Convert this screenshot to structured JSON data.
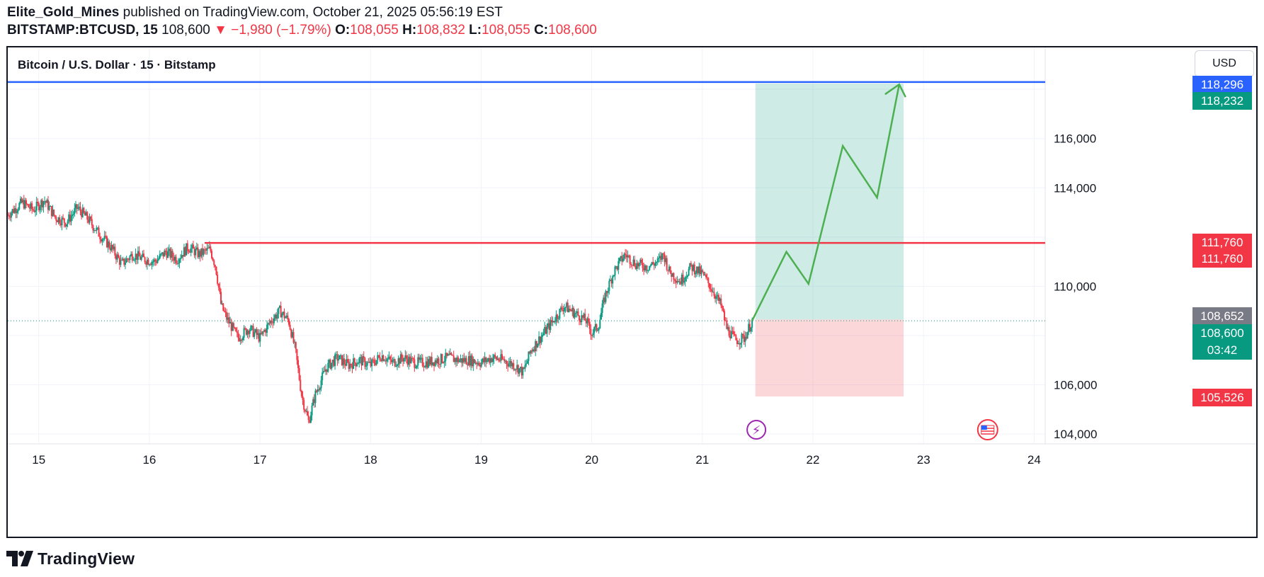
{
  "header": {
    "author": "Elite_Gold_Mines",
    "published_text": " published on TradingView.com, October 21, 2025 05:56:19 EST",
    "symbol": "BITSTAMP:BTCUSD, 15",
    "last": "108,600",
    "arrow": "▼",
    "change": "−1,980 (−1.79%)",
    "open_label": "O:",
    "open": "108,055",
    "high_label": "H:",
    "high": "108,832",
    "low_label": "L:",
    "low": "108,055",
    "close_label": "C:",
    "close": "108,600"
  },
  "chart": {
    "legend_title": "Bitcoin / U.S. Dollar · 15 · Bitstamp",
    "currency_button": "USD",
    "price_tags": [
      {
        "label": "118,296",
        "sub": "",
        "price": 118296,
        "color": "#2962ff"
      },
      {
        "label": "118,232",
        "sub": "",
        "price": 118232,
        "color": "#089981"
      },
      {
        "label": "111,760",
        "sub": "",
        "price": 111760,
        "color": "#f23645"
      },
      {
        "label": "111,760",
        "sub": "",
        "price": 111760,
        "color": "#f23645"
      },
      {
        "label": "108,652",
        "sub": "",
        "price": 108652,
        "color": "#787b86"
      },
      {
        "label": "108,600",
        "sub": "03:42",
        "price": 108600,
        "color": "#089981"
      },
      {
        "label": "105,526",
        "sub": "",
        "price": 105526,
        "color": "#f23645"
      }
    ],
    "event_icons": [
      "lightning-event-icon",
      "us-flag-event-icon"
    ]
  },
  "chart_data": {
    "type": "candlestick",
    "x_axis_ticks": [
      "15",
      "16",
      "17",
      "18",
      "19",
      "20",
      "21",
      "22",
      "23",
      "24"
    ],
    "y_axis_ticks": [
      "104,000",
      "106,000",
      "110,000",
      "114,000",
      "116,000"
    ],
    "ylim": [
      103600,
      119700
    ],
    "xlim": [
      14.72,
      24.1
    ],
    "grid": true,
    "price_path": [
      [
        14.72,
        112.9
      ],
      [
        14.85,
        113.4
      ],
      [
        14.95,
        113.1
      ],
      [
        15.05,
        113.5
      ],
      [
        15.15,
        112.8
      ],
      [
        15.25,
        112.6
      ],
      [
        15.35,
        113.2
      ],
      [
        15.45,
        112.7
      ],
      [
        15.55,
        112.1
      ],
      [
        15.65,
        111.6
      ],
      [
        15.75,
        110.9
      ],
      [
        15.85,
        111.3
      ],
      [
        15.95,
        111.1
      ],
      [
        16.05,
        111.0
      ],
      [
        16.15,
        111.4
      ],
      [
        16.25,
        111.1
      ],
      [
        16.35,
        111.6
      ],
      [
        16.45,
        111.3
      ],
      [
        16.55,
        111.5
      ],
      [
        16.6,
        110.8
      ],
      [
        16.65,
        109.2
      ],
      [
        16.7,
        108.7
      ],
      [
        16.8,
        107.9
      ],
      [
        16.9,
        108.3
      ],
      [
        17.0,
        107.9
      ],
      [
        17.1,
        108.6
      ],
      [
        17.18,
        109.0
      ],
      [
        17.26,
        108.6
      ],
      [
        17.32,
        107.4
      ],
      [
        17.38,
        105.5
      ],
      [
        17.44,
        104.5
      ],
      [
        17.5,
        105.6
      ],
      [
        17.6,
        106.7
      ],
      [
        17.7,
        107.1
      ],
      [
        17.8,
        106.8
      ],
      [
        17.9,
        107.0
      ],
      [
        18.0,
        106.8
      ],
      [
        18.1,
        107.2
      ],
      [
        18.2,
        106.9
      ],
      [
        18.3,
        107.1
      ],
      [
        18.4,
        106.9
      ],
      [
        18.5,
        106.9
      ],
      [
        18.6,
        107.0
      ],
      [
        18.7,
        107.1
      ],
      [
        18.8,
        107.0
      ],
      [
        18.9,
        107.0
      ],
      [
        19.0,
        106.9
      ],
      [
        19.1,
        107.1
      ],
      [
        19.2,
        107.0
      ],
      [
        19.3,
        106.8
      ],
      [
        19.38,
        106.5
      ],
      [
        19.45,
        107.4
      ],
      [
        19.55,
        108.0
      ],
      [
        19.65,
        108.6
      ],
      [
        19.75,
        109.2
      ],
      [
        19.85,
        108.9
      ],
      [
        19.95,
        108.6
      ],
      [
        20.0,
        108.1
      ],
      [
        20.06,
        108.4
      ],
      [
        20.12,
        109.6
      ],
      [
        20.2,
        110.6
      ],
      [
        20.3,
        111.3
      ],
      [
        20.4,
        110.9
      ],
      [
        20.5,
        110.8
      ],
      [
        20.6,
        111.0
      ],
      [
        20.65,
        111.3
      ],
      [
        20.7,
        110.6
      ],
      [
        20.8,
        110.2
      ],
      [
        20.9,
        110.8
      ],
      [
        21.0,
        110.5
      ],
      [
        21.1,
        109.8
      ],
      [
        21.17,
        109.2
      ],
      [
        21.22,
        108.3
      ],
      [
        21.3,
        107.8
      ],
      [
        21.38,
        107.9
      ],
      [
        21.45,
        108.6
      ]
    ],
    "horizontal_lines": [
      {
        "name": "target",
        "value": 118296,
        "color": "#2962ff",
        "x_start": 14.72
      },
      {
        "name": "resistance",
        "value": 111760,
        "color": "#f23645",
        "x_start": 16.5
      }
    ],
    "long_position": {
      "x_start": 21.48,
      "x_end": 22.82,
      "entry": 108652,
      "target": 118232,
      "stop": 105526
    },
    "projection": [
      [
        21.45,
        108.6
      ],
      [
        21.76,
        111.4
      ],
      [
        21.96,
        110.1
      ],
      [
        22.27,
        115.7
      ],
      [
        22.58,
        113.6
      ],
      [
        22.78,
        118.2
      ]
    ],
    "current_price": 108600
  }
}
